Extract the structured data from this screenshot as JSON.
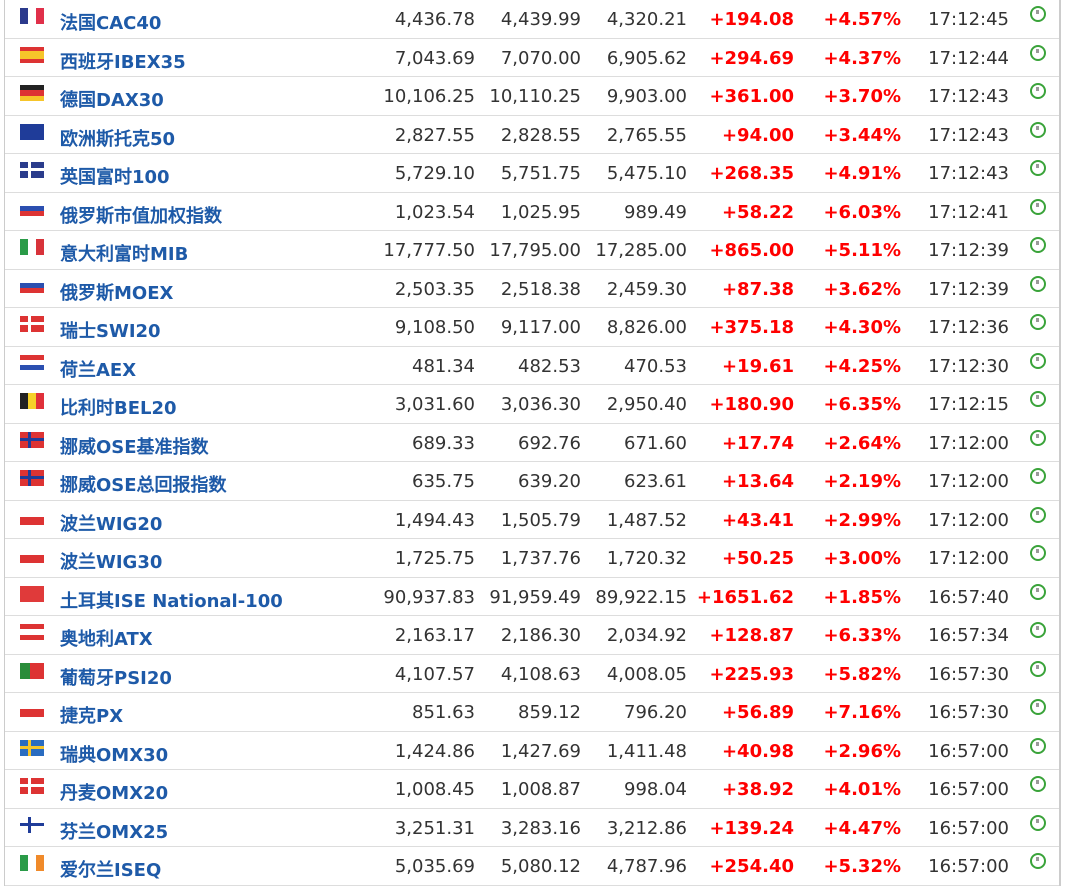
{
  "rows": [
    {
      "name": "法国CAC40",
      "flag": "fr",
      "last": "4,436.78",
      "high": "4,439.99",
      "low": "4,320.21",
      "chg": "+194.08",
      "pct": "+4.57%",
      "time": "17:12:45"
    },
    {
      "name": "西班牙IBEX35",
      "flag": "es",
      "last": "7,043.69",
      "high": "7,070.00",
      "low": "6,905.62",
      "chg": "+294.69",
      "pct": "+4.37%",
      "time": "17:12:44"
    },
    {
      "name": "德国DAX30",
      "flag": "de",
      "last": "10,106.25",
      "high": "10,110.25",
      "low": "9,903.00",
      "chg": "+361.00",
      "pct": "+3.70%",
      "time": "17:12:43"
    },
    {
      "name": "欧洲斯托克50",
      "flag": "eu",
      "last": "2,827.55",
      "high": "2,828.55",
      "low": "2,765.55",
      "chg": "+94.00",
      "pct": "+3.44%",
      "time": "17:12:43"
    },
    {
      "name": "英国富时100",
      "flag": "uk",
      "last": "5,729.10",
      "high": "5,751.75",
      "low": "5,475.10",
      "chg": "+268.35",
      "pct": "+4.91%",
      "time": "17:12:43"
    },
    {
      "name": "俄罗斯市值加权指数",
      "flag": "ru",
      "last": "1,023.54",
      "high": "1,025.95",
      "low": "989.49",
      "chg": "+58.22",
      "pct": "+6.03%",
      "time": "17:12:41"
    },
    {
      "name": "意大利富时MIB",
      "flag": "it",
      "last": "17,777.50",
      "high": "17,795.00",
      "low": "17,285.00",
      "chg": "+865.00",
      "pct": "+5.11%",
      "time": "17:12:39"
    },
    {
      "name": "俄罗斯MOEX",
      "flag": "ru",
      "last": "2,503.35",
      "high": "2,518.38",
      "low": "2,459.30",
      "chg": "+87.38",
      "pct": "+3.62%",
      "time": "17:12:39"
    },
    {
      "name": "瑞士SWI20",
      "flag": "ch",
      "last": "9,108.50",
      "high": "9,117.00",
      "low": "8,826.00",
      "chg": "+375.18",
      "pct": "+4.30%",
      "time": "17:12:36"
    },
    {
      "name": "荷兰AEX",
      "flag": "nl",
      "last": "481.34",
      "high": "482.53",
      "low": "470.53",
      "chg": "+19.61",
      "pct": "+4.25%",
      "time": "17:12:30"
    },
    {
      "name": "比利时BEL20",
      "flag": "be",
      "last": "3,031.60",
      "high": "3,036.30",
      "low": "2,950.40",
      "chg": "+180.90",
      "pct": "+6.35%",
      "time": "17:12:15"
    },
    {
      "name": "挪威OSE基准指数",
      "flag": "no",
      "last": "689.33",
      "high": "692.76",
      "low": "671.60",
      "chg": "+17.74",
      "pct": "+2.64%",
      "time": "17:12:00"
    },
    {
      "name": "挪威OSE总回报指数",
      "flag": "no",
      "last": "635.75",
      "high": "639.20",
      "low": "623.61",
      "chg": "+13.64",
      "pct": "+2.19%",
      "time": "17:12:00"
    },
    {
      "name": "波兰WIG20",
      "flag": "pl",
      "last": "1,494.43",
      "high": "1,505.79",
      "low": "1,487.52",
      "chg": "+43.41",
      "pct": "+2.99%",
      "time": "17:12:00"
    },
    {
      "name": "波兰WIG30",
      "flag": "pl",
      "last": "1,725.75",
      "high": "1,737.76",
      "low": "1,720.32",
      "chg": "+50.25",
      "pct": "+3.00%",
      "time": "17:12:00"
    },
    {
      "name": "土耳其ISE National-100",
      "flag": "tr",
      "last": "90,937.83",
      "high": "91,959.49",
      "low": "89,922.15",
      "chg": "+1651.62",
      "pct": "+1.85%",
      "time": "16:57:40"
    },
    {
      "name": "奥地利ATX",
      "flag": "at",
      "last": "2,163.17",
      "high": "2,186.30",
      "low": "2,034.92",
      "chg": "+128.87",
      "pct": "+6.33%",
      "time": "16:57:34"
    },
    {
      "name": "葡萄牙PSI20",
      "flag": "pt",
      "last": "4,107.57",
      "high": "4,108.63",
      "low": "4,008.05",
      "chg": "+225.93",
      "pct": "+5.82%",
      "time": "16:57:30"
    },
    {
      "name": "捷克PX",
      "flag": "cz",
      "last": "851.63",
      "high": "859.12",
      "low": "796.20",
      "chg": "+56.89",
      "pct": "+7.16%",
      "time": "16:57:30"
    },
    {
      "name": "瑞典OMX30",
      "flag": "se",
      "last": "1,424.86",
      "high": "1,427.69",
      "low": "1,411.48",
      "chg": "+40.98",
      "pct": "+2.96%",
      "time": "16:57:00"
    },
    {
      "name": "丹麦OMX20",
      "flag": "dk",
      "last": "1,008.45",
      "high": "1,008.87",
      "low": "998.04",
      "chg": "+38.92",
      "pct": "+4.01%",
      "time": "16:57:00"
    },
    {
      "name": "芬兰OMX25",
      "flag": "fi",
      "last": "3,251.31",
      "high": "3,283.16",
      "low": "3,212.86",
      "chg": "+139.24",
      "pct": "+4.47%",
      "time": "16:57:00"
    },
    {
      "name": "爱尔兰ISEQ",
      "flag": "ie",
      "last": "5,035.69",
      "high": "5,080.12",
      "low": "4,787.96",
      "chg": "+254.40",
      "pct": "+5.32%",
      "time": "16:57:00"
    }
  ],
  "colors": {
    "name": "#1e5aa8",
    "up": "#ff0000",
    "clock": "#3aa33a"
  }
}
